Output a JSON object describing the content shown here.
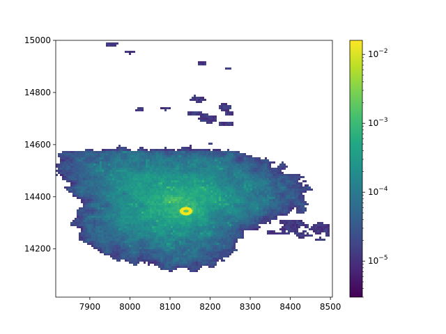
{
  "chart_data": {
    "type": "heatmap",
    "title": "",
    "xlabel": "",
    "ylabel": "",
    "xlim": [
      7815,
      8505
    ],
    "ylim": [
      14015,
      15000
    ],
    "x_ticks": [
      7900,
      8000,
      8100,
      8200,
      8300,
      8400,
      8500
    ],
    "y_ticks": [
      14200,
      14400,
      14600,
      14800,
      15000
    ],
    "x_tick_labels": [
      "7900",
      "8000",
      "8100",
      "8200",
      "8300",
      "8400",
      "8500"
    ],
    "y_tick_labels": [
      "14200",
      "14400",
      "14600",
      "14800",
      "15000"
    ],
    "colormap": "viridis",
    "colorbar": {
      "scale": "log",
      "range": [
        3e-06,
        0.016
      ],
      "ticks": [
        1e-05,
        0.0001,
        0.001,
        0.01
      ],
      "tick_labels": [
        {
          "base": "10",
          "exp": "−5"
        },
        {
          "base": "10",
          "exp": "−4"
        },
        {
          "base": "10",
          "exp": "−3"
        },
        {
          "base": "10",
          "exp": "−2"
        }
      ]
    },
    "background_color": "#ffffff",
    "density_description": "2D histogram of a roughly circular cloud centered near (8140, 14345) with peak density ~0.015 at the core, decaying outward to ~1e-5 at the edges; sparse fragments toward the north and a tail toward the east.",
    "peak": {
      "x": 8140,
      "y": 14345,
      "value": 0.015
    },
    "main_cloud": {
      "cx": 8110,
      "cy": 14390,
      "extent_x": [
        7830,
        8500
      ],
      "extent_y": [
        14020,
        14660
      ]
    }
  }
}
